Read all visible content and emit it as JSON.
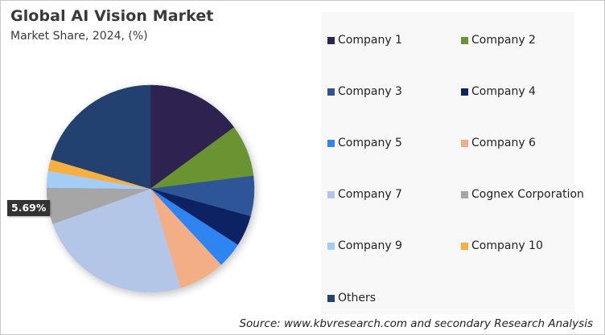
{
  "header": {
    "title": "Global AI Vision Market",
    "subtitle": "Market Share, 2024, (%)"
  },
  "data_label": {
    "text": "5.69%",
    "target": "Cognex Corporation"
  },
  "legend": {
    "items": [
      {
        "label": "Company 1",
        "color": "#2e2451"
      },
      {
        "label": "Company 2",
        "color": "#6a9431"
      },
      {
        "label": "Company 3",
        "color": "#2f5597"
      },
      {
        "label": "Company 4",
        "color": "#0c2463"
      },
      {
        "label": "Company 5",
        "color": "#2f84f0"
      },
      {
        "label": "Company 6",
        "color": "#f4ae85"
      },
      {
        "label": "Company 7",
        "color": "#b3c6e7"
      },
      {
        "label": "Cognex Corporation",
        "color": "#a6a6a6"
      },
      {
        "label": "Company 9",
        "color": "#a3cdf5"
      },
      {
        "label": "Company 10",
        "color": "#f7af3e"
      },
      {
        "label": "Others",
        "color": "#24416f"
      }
    ]
  },
  "footer": {
    "source": "Source: www.kbvresearch.com and secondary Research Analysis"
  },
  "chart_data": {
    "type": "pie",
    "title": "Global AI Vision Market",
    "subtitle": "Market Share, 2024, (%)",
    "categories": [
      "Company 1",
      "Company 2",
      "Company 3",
      "Company 4",
      "Company 5",
      "Company 6",
      "Company 7",
      "Cognex Corporation",
      "Company 9",
      "Company 10",
      "Others"
    ],
    "values": [
      14.9,
      8.1,
      6.3,
      4.8,
      4.0,
      7.2,
      24.2,
      5.69,
      2.6,
      1.8,
      20.41
    ],
    "colors": [
      "#2e2451",
      "#6a9431",
      "#2f5597",
      "#0c2463",
      "#2f84f0",
      "#f4ae85",
      "#b3c6e7",
      "#a6a6a6",
      "#a3cdf5",
      "#f7af3e",
      "#24416f"
    ],
    "start_angle_deg": 0,
    "direction": "clockwise",
    "annotations": [
      {
        "category": "Cognex Corporation",
        "text": "5.69%"
      }
    ],
    "legend_position": "right",
    "source": "Source: www.kbvresearch.com and secondary Research Analysis"
  }
}
